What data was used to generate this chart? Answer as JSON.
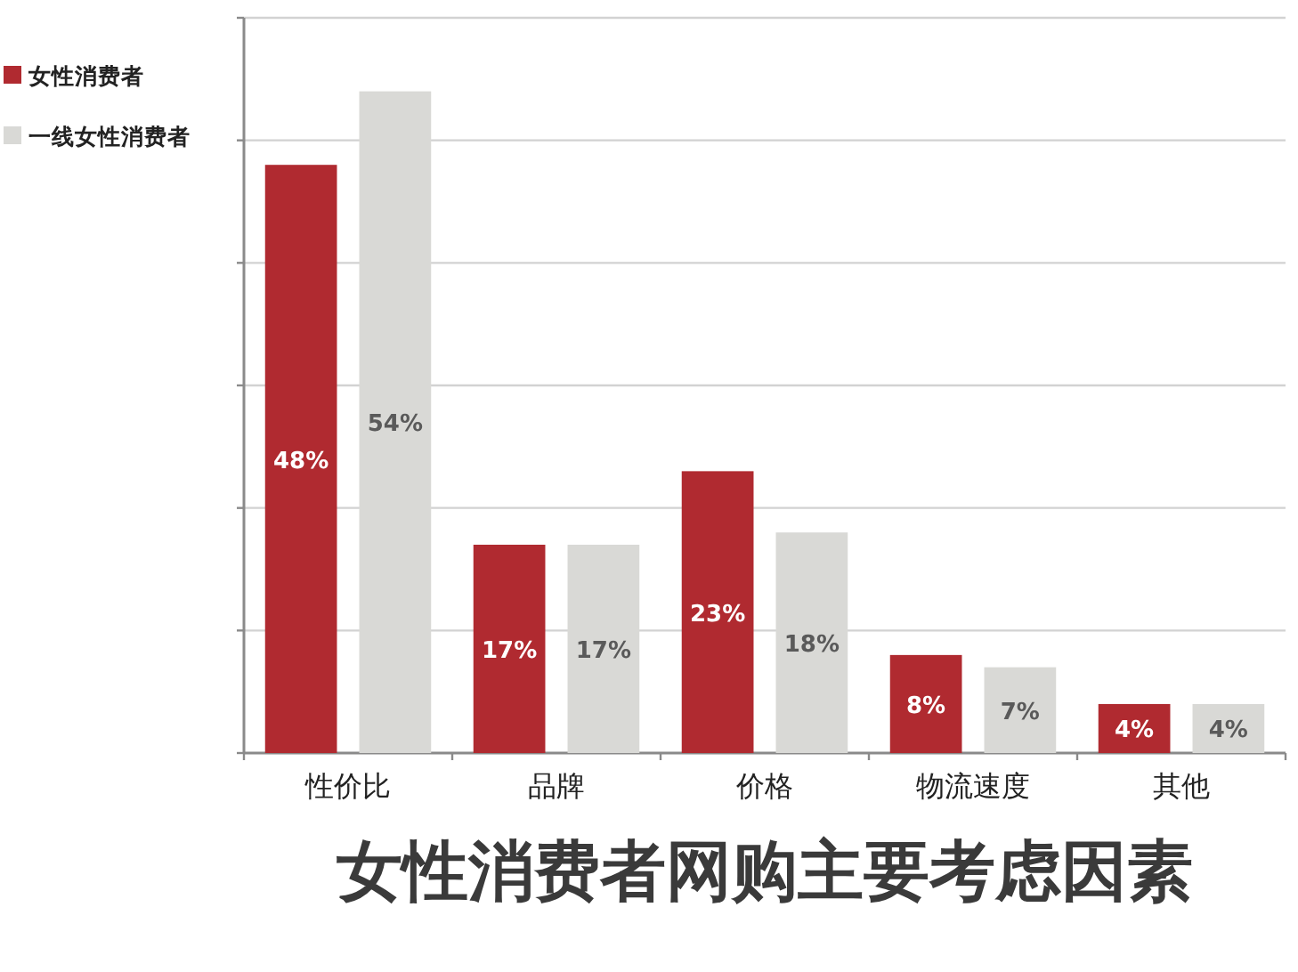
{
  "chart_data": {
    "type": "bar",
    "title": "女性消费者网购主要考虑因素",
    "categories": [
      "性价比",
      "品牌",
      "价格",
      "物流速度",
      "其他"
    ],
    "series": [
      {
        "name": "女性消费者",
        "color": "#b02a30",
        "values": [
          48,
          17,
          23,
          8,
          4
        ],
        "value_labels": [
          "48%",
          "17%",
          "23%",
          "8%",
          "4%"
        ]
      },
      {
        "name": "一线女性消费者",
        "color": "#d9d9d6",
        "values": [
          54,
          17,
          18,
          7,
          4
        ],
        "value_labels": [
          "54%",
          "17%",
          "18%",
          "7%",
          "4%"
        ]
      }
    ],
    "ylim": [
      0,
      60
    ],
    "yticks": [
      {
        "value": 0,
        "label": null
      },
      {
        "value": 10,
        "label": null
      },
      {
        "value": 20,
        "label": null
      },
      {
        "value": 30,
        "label": null
      },
      {
        "value": 40,
        "label": null
      },
      {
        "value": 50,
        "label": null
      },
      {
        "value": 60,
        "label": null
      }
    ],
    "grid": "y",
    "tick_labels": "x",
    "legend": "top left"
  }
}
